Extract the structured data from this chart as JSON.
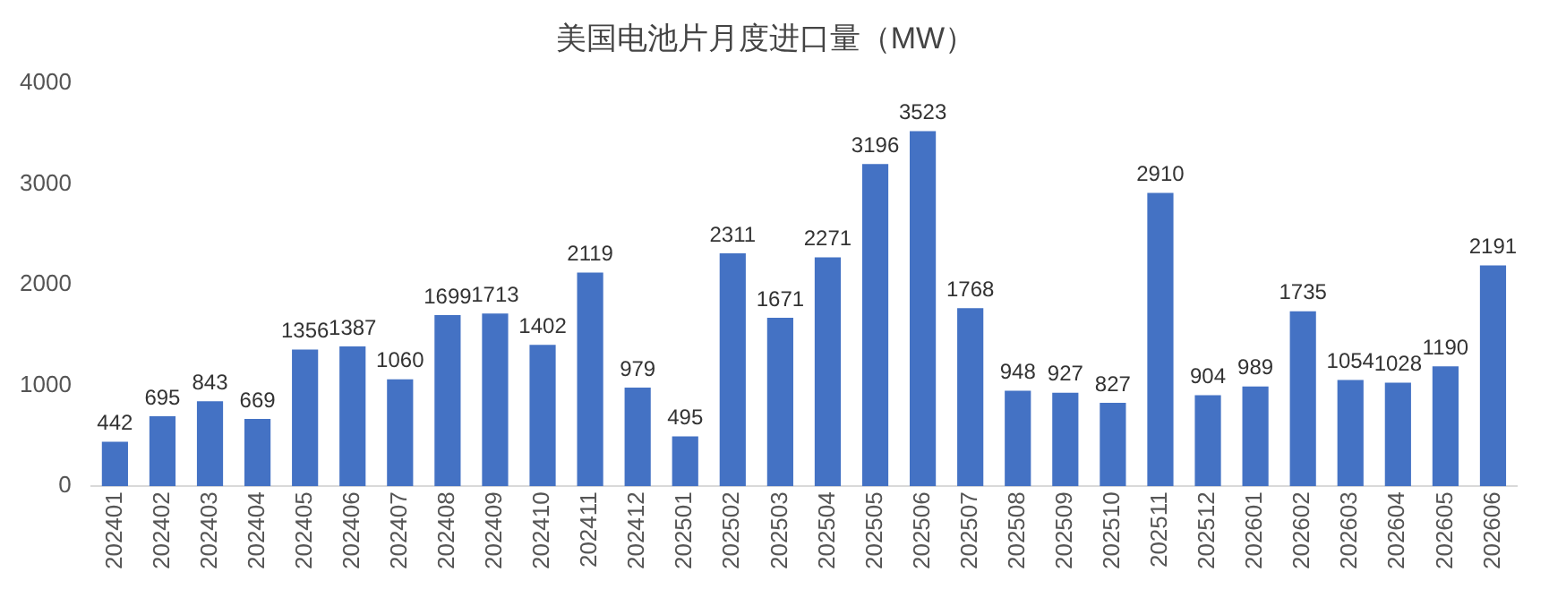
{
  "chart_data": {
    "type": "bar",
    "title": "美国电池片月度进口量（MW）",
    "categories": [
      "202401",
      "202402",
      "202403",
      "202404",
      "202405",
      "202406",
      "202407",
      "202408",
      "202409",
      "202410",
      "202411",
      "202412",
      "202501",
      "202502",
      "202503",
      "202504",
      "202505",
      "202506",
      "202507",
      "202508",
      "202509",
      "202510",
      "202511",
      "202512",
      "202601",
      "202602",
      "202603",
      "202604",
      "202605",
      "202606"
    ],
    "values": [
      442,
      695,
      843,
      669,
      1356,
      1387,
      1060,
      1699,
      1713,
      1402,
      2119,
      979,
      495,
      2311,
      1671,
      2271,
      3196,
      3523,
      1768,
      948,
      927,
      827,
      2910,
      904,
      989,
      1735,
      1054,
      1028,
      1190,
      2191
    ],
    "color": "#4472c4",
    "ylim": [
      0,
      4000
    ],
    "yticks": [
      0,
      1000,
      2000,
      3000,
      4000
    ],
    "grid": false,
    "legend": false,
    "data_labels": true
  }
}
